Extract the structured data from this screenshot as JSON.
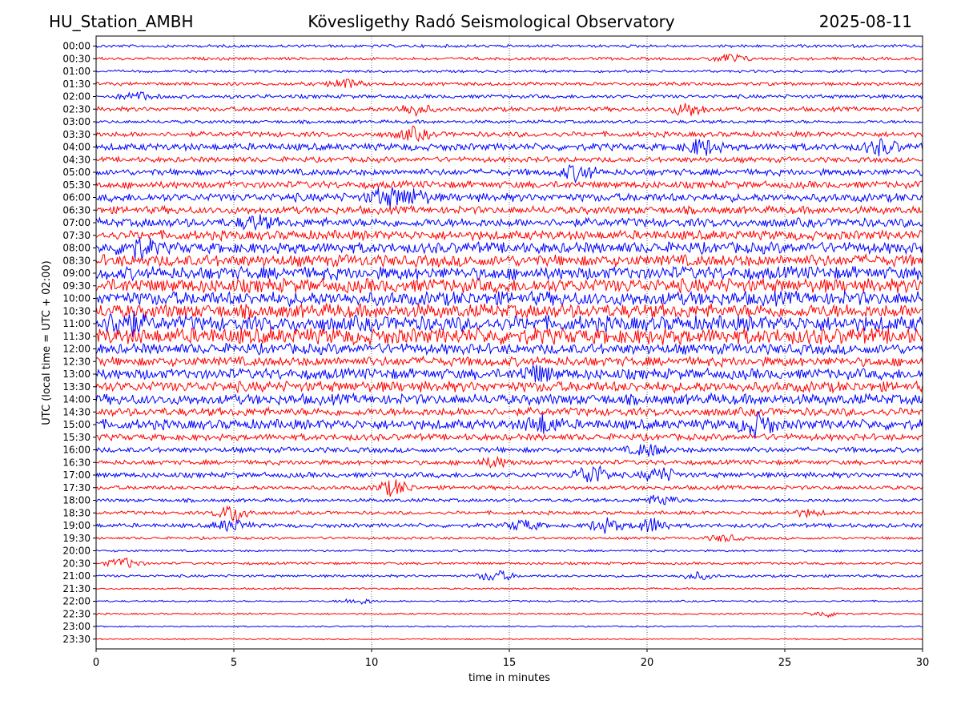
{
  "header": {
    "station": "HU_Station_AMBH",
    "observatory": "Kövesligethy Radó Seismological Observatory",
    "date": "2025-08-11"
  },
  "chart_data": {
    "type": "line",
    "title": "Kövesligethy Radó Seismological Observatory",
    "xlabel": "time in minutes",
    "ylabel": "UTC (local time = UTC + 02:00)",
    "xlim": [
      0,
      30
    ],
    "x_ticks": [
      0,
      5,
      10,
      15,
      20,
      25,
      30
    ],
    "grid": "vertical dotted at 5-minute ticks",
    "colors": {
      "even_trace": "#0000ff",
      "odd_trace": "#ff0000"
    },
    "rows": [
      "00:00",
      "00:30",
      "01:00",
      "01:30",
      "02:00",
      "02:30",
      "03:00",
      "03:30",
      "04:00",
      "04:30",
      "05:00",
      "05:30",
      "06:00",
      "06:30",
      "07:00",
      "07:30",
      "08:00",
      "08:30",
      "09:00",
      "09:30",
      "10:00",
      "10:30",
      "11:00",
      "11:30",
      "12:00",
      "12:30",
      "13:00",
      "13:30",
      "14:00",
      "14:30",
      "15:00",
      "15:30",
      "16:00",
      "16:30",
      "17:00",
      "17:30",
      "18:00",
      "18:30",
      "19:00",
      "19:30",
      "20:00",
      "20:30",
      "21:00",
      "21:30",
      "22:00",
      "22:30",
      "23:00",
      "23:30"
    ],
    "relative_noise_amplitude": [
      0.25,
      0.25,
      0.22,
      0.3,
      0.32,
      0.38,
      0.28,
      0.45,
      0.6,
      0.45,
      0.55,
      0.6,
      0.7,
      0.65,
      0.75,
      0.8,
      0.95,
      1.0,
      1.1,
      1.2,
      1.2,
      1.2,
      1.3,
      1.4,
      0.9,
      0.8,
      0.9,
      0.9,
      0.9,
      0.7,
      0.85,
      0.55,
      0.45,
      0.4,
      0.45,
      0.35,
      0.3,
      0.3,
      0.35,
      0.22,
      0.18,
      0.22,
      0.22,
      0.15,
      0.15,
      0.15,
      0.12,
      0.12
    ],
    "bursts": [
      {
        "row": "00:30",
        "minute": 23.0,
        "amplitude": 0.8
      },
      {
        "row": "01:30",
        "minute": 9.0,
        "amplitude": 0.8
      },
      {
        "row": "02:00",
        "minute": 1.5,
        "amplitude": 0.7
      },
      {
        "row": "02:30",
        "minute": 11.5,
        "amplitude": 1.0
      },
      {
        "row": "02:30",
        "minute": 21.5,
        "amplitude": 1.2
      },
      {
        "row": "03:30",
        "minute": 11.5,
        "amplitude": 1.0
      },
      {
        "row": "04:00",
        "minute": 22.0,
        "amplitude": 1.3
      },
      {
        "row": "04:00",
        "minute": 28.5,
        "amplitude": 1.2
      },
      {
        "row": "05:00",
        "minute": 17.5,
        "amplitude": 1.3
      },
      {
        "row": "06:00",
        "minute": 10.5,
        "amplitude": 1.4
      },
      {
        "row": "06:00",
        "minute": 11.5,
        "amplitude": 1.2
      },
      {
        "row": "07:00",
        "minute": 5.8,
        "amplitude": 1.0
      },
      {
        "row": "08:00",
        "minute": 1.5,
        "amplitude": 1.6
      },
      {
        "row": "11:00",
        "minute": 1.0,
        "amplitude": 2.0
      },
      {
        "row": "13:00",
        "minute": 16.0,
        "amplitude": 1.2
      },
      {
        "row": "15:00",
        "minute": 24.0,
        "amplitude": 1.8
      },
      {
        "row": "15:00",
        "minute": 16.2,
        "amplitude": 1.4
      },
      {
        "row": "16:00",
        "minute": 20.0,
        "amplitude": 1.0
      },
      {
        "row": "16:30",
        "minute": 14.5,
        "amplitude": 0.8
      },
      {
        "row": "17:00",
        "minute": 18.0,
        "amplitude": 1.8
      },
      {
        "row": "17:00",
        "minute": 20.5,
        "amplitude": 1.2
      },
      {
        "row": "17:30",
        "minute": 10.8,
        "amplitude": 1.4
      },
      {
        "row": "18:00",
        "minute": 20.5,
        "amplitude": 0.9
      },
      {
        "row": "18:30",
        "minute": 5.0,
        "amplitude": 1.5
      },
      {
        "row": "18:30",
        "minute": 25.8,
        "amplitude": 0.5
      },
      {
        "row": "19:00",
        "minute": 4.9,
        "amplitude": 1.0
      },
      {
        "row": "19:00",
        "minute": 15.5,
        "amplitude": 0.9
      },
      {
        "row": "19:00",
        "minute": 18.5,
        "amplitude": 1.2
      },
      {
        "row": "19:00",
        "minute": 20.2,
        "amplitude": 1.3
      },
      {
        "row": "19:30",
        "minute": 22.8,
        "amplitude": 0.6
      },
      {
        "row": "20:30",
        "minute": 1.0,
        "amplitude": 0.9
      },
      {
        "row": "21:00",
        "minute": 14.5,
        "amplitude": 1.0
      },
      {
        "row": "21:00",
        "minute": 21.8,
        "amplitude": 0.6
      },
      {
        "row": "22:00",
        "minute": 9.5,
        "amplitude": 0.5
      },
      {
        "row": "22:30",
        "minute": 26.5,
        "amplitude": 0.5
      }
    ]
  }
}
